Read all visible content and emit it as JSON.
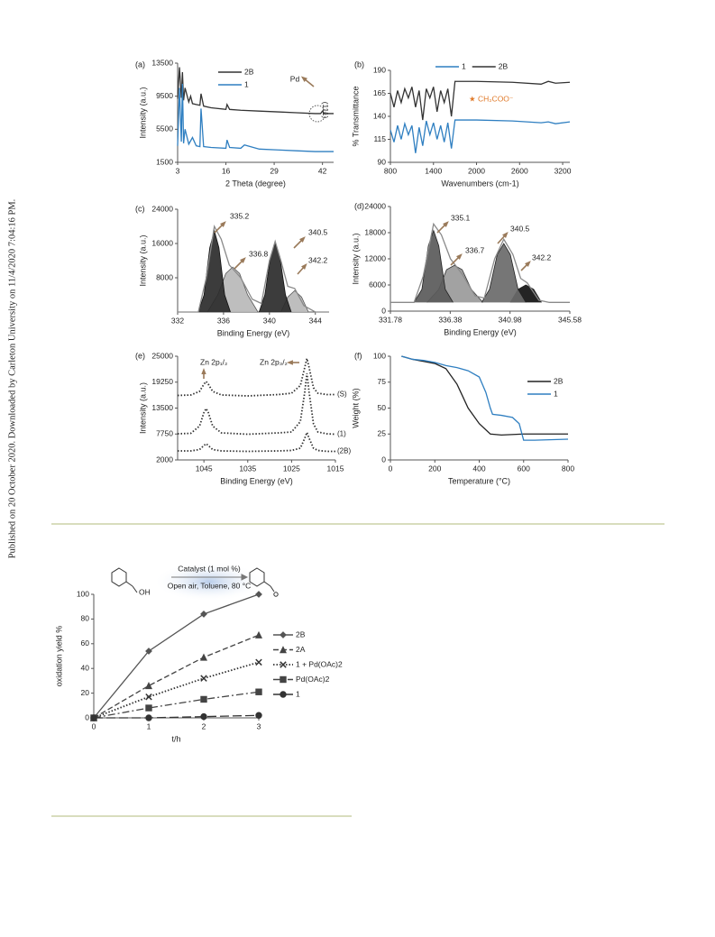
{
  "side_note": "Published on 20 October 2020. Downloaded by Carleton University on 11/4/2020 7:04:16 PM.",
  "chart_data": [
    {
      "type": "line",
      "panel_label": "(a)",
      "xlabel": "2 Theta (degree)",
      "ylabel": "Intensity (a.u.)",
      "xlim": [
        3,
        45
      ],
      "ylim": [
        1500,
        13500
      ],
      "xticks": [
        3,
        16,
        29,
        42
      ],
      "yticks": [
        1500,
        5500,
        9500,
        13500
      ],
      "legend": "upper left",
      "annotations": [
        "Pd",
        "(111)"
      ],
      "series": [
        {
          "name": "2B",
          "color": "#333333",
          "x": [
            3,
            3.5,
            4,
            4.3,
            4.6,
            5,
            6,
            6.5,
            7,
            8,
            9,
            9.3,
            10,
            12,
            16,
            16.3,
            17,
            20,
            25,
            30,
            35,
            40,
            41.5,
            42,
            42.5,
            45
          ],
          "values": [
            9200,
            13000,
            9300,
            12400,
            9000,
            10500,
            8800,
            9500,
            8600,
            8500,
            8400,
            9800,
            8300,
            8100,
            7900,
            8500,
            7900,
            7800,
            7700,
            7600,
            7500,
            7400,
            7400,
            7700,
            7400,
            7400
          ]
        },
        {
          "name": "1",
          "color": "#2f7fc1",
          "x": [
            3,
            3.5,
            4,
            4.3,
            4.6,
            5,
            6,
            7,
            8,
            9,
            9.3,
            10,
            12,
            16,
            16.3,
            17,
            20,
            21,
            25,
            30,
            35,
            40,
            45
          ],
          "values": [
            3500,
            10500,
            4000,
            11000,
            3800,
            5500,
            3700,
            4500,
            3500,
            3400,
            8000,
            3400,
            3300,
            3200,
            4200,
            3300,
            3200,
            3600,
            3100,
            3000,
            2900,
            2800,
            2800
          ]
        }
      ]
    },
    {
      "type": "line",
      "panel_label": "(b)",
      "xlabel": "Wavenumbers (cm-1)",
      "ylabel": "% Transmittance",
      "xlim": [
        800,
        3300
      ],
      "ylim": [
        90,
        190
      ],
      "xticks": [
        800,
        1400,
        2000,
        2600,
        3200
      ],
      "yticks": [
        90,
        115,
        140,
        165,
        190
      ],
      "legend": "top",
      "annotations": [
        "★ CH₂COO⁻"
      ],
      "x": [
        800,
        850,
        900,
        950,
        1000,
        1050,
        1100,
        1150,
        1200,
        1250,
        1300,
        1350,
        1400,
        1450,
        1500,
        1550,
        1600,
        1650,
        1700,
        1750,
        2000,
        2500,
        2900,
        3000,
        3100,
        3300
      ],
      "series": [
        {
          "name": "1",
          "color": "#2f7fc1",
          "values": [
            125,
            112,
            130,
            115,
            132,
            120,
            130,
            100,
            128,
            108,
            135,
            120,
            133,
            115,
            130,
            112,
            133,
            105,
            136,
            136,
            136,
            135,
            133,
            134,
            132,
            134
          ]
        },
        {
          "name": "2B",
          "color": "#333333",
          "values": [
            165,
            150,
            168,
            155,
            170,
            160,
            172,
            150,
            168,
            136,
            170,
            160,
            172,
            145,
            168,
            155,
            170,
            140,
            178,
            178,
            178,
            177,
            175,
            178,
            176,
            177
          ]
        }
      ]
    },
    {
      "type": "line",
      "panel_label": "(c)",
      "xlabel": "Binding Energy (eV)",
      "ylabel": "Intensity (a.u.)",
      "xlim": [
        332,
        345.2
      ],
      "ylim": [
        0,
        24000
      ],
      "xticks": [
        332,
        336,
        340,
        344
      ],
      "yticks": [
        8000,
        16000,
        24000
      ],
      "annotations": [
        "335.2",
        "336.8",
        "340.5",
        "342.2"
      ],
      "series": [
        {
          "color": "#555555",
          "fill": "#b8b8b8",
          "x": [
            334.6,
            335.5,
            336.2,
            336.8,
            337.4,
            338.1,
            339.0
          ],
          "values": [
            0,
            4000,
            9000,
            10500,
            9000,
            4000,
            0
          ]
        },
        {
          "color": "#111111",
          "fill": "#2b2b2b",
          "x": [
            333.8,
            334.3,
            334.8,
            335.2,
            335.6,
            336.1,
            336.6
          ],
          "values": [
            0,
            4000,
            15000,
            19000,
            15000,
            4000,
            0
          ]
        },
        {
          "color": "#555555",
          "fill": "#b8b8b8",
          "x": [
            341.0,
            341.6,
            342.2,
            342.8,
            343.4
          ],
          "values": [
            0,
            3500,
            5000,
            3500,
            0
          ]
        },
        {
          "color": "#111111",
          "fill": "#2b2b2b",
          "x": [
            339.1,
            339.6,
            340.1,
            340.5,
            340.9,
            341.4,
            341.9
          ],
          "values": [
            0,
            4000,
            13000,
            16000,
            13000,
            4000,
            0
          ]
        },
        {
          "color": "#8a8a8a",
          "x": [
            332,
            333.8,
            334.5,
            335.2,
            335.8,
            336.5,
            337.5,
            338.5,
            339.3,
            340,
            340.5,
            341,
            341.6,
            342.2,
            343,
            344,
            345.2
          ],
          "values": [
            0,
            0,
            8000,
            20000,
            17000,
            11000,
            8000,
            3000,
            2000,
            12000,
            16500,
            12000,
            6000,
            5500,
            1500,
            0,
            0
          ]
        }
      ]
    },
    {
      "type": "line",
      "panel_label": "(d)",
      "xlabel": "Binding Energy (eV)",
      "ylabel": "Intensity (a.u.)",
      "xlim": [
        331.78,
        345.58
      ],
      "ylim": [
        0,
        24000
      ],
      "xticks": [
        331.78,
        336.38,
        340.98,
        345.58
      ],
      "yticks": [
        0,
        6000,
        12000,
        18000,
        24000
      ],
      "annotations": [
        "335.1",
        "336.7",
        "340.5",
        "342.2"
      ],
      "series": [
        {
          "color": "#333333",
          "fill": "#9a9a9a",
          "x": [
            334.6,
            335.5,
            336.1,
            336.7,
            337.3,
            338.0,
            338.9
          ],
          "values": [
            2000,
            5000,
            9500,
            10500,
            9500,
            5000,
            2000
          ]
        },
        {
          "color": "#222222",
          "fill": "#5a5a5a",
          "x": [
            333.6,
            334.2,
            334.7,
            335.1,
            335.5,
            336.0,
            336.6
          ],
          "values": [
            2000,
            5000,
            15000,
            18500,
            15000,
            5000,
            2000
          ]
        },
        {
          "color": "#222222",
          "fill": "#111111",
          "x": [
            341.0,
            341.6,
            342.2,
            342.8,
            343.4
          ],
          "values": [
            2000,
            5000,
            6000,
            5000,
            2000
          ]
        },
        {
          "color": "#222222",
          "fill": "#6a6a6a",
          "x": [
            338.8,
            339.4,
            340.0,
            340.5,
            341.0,
            341.6,
            342.2
          ],
          "values": [
            2000,
            5000,
            13000,
            15500,
            13000,
            5000,
            2000
          ]
        },
        {
          "color": "#8a8a8a",
          "x": [
            331.78,
            333.6,
            334.3,
            335.1,
            335.7,
            336.4,
            337.3,
            338.3,
            339,
            339.8,
            340.5,
            341.2,
            341.8,
            342.3,
            343.2,
            344,
            345.58
          ],
          "values": [
            2000,
            2000,
            8000,
            20000,
            17500,
            12000,
            8500,
            3500,
            3000,
            12000,
            16500,
            13000,
            7500,
            6500,
            2500,
            2000,
            2000
          ]
        }
      ]
    },
    {
      "type": "line",
      "panel_label": "(e)",
      "xlabel": "Binding Energy (eV)",
      "ylabel": "Intensity (a.u.)",
      "xlim": [
        1051,
        1015
      ],
      "ylim": [
        2000,
        25000
      ],
      "xticks": [
        1045,
        1035,
        1025,
        1015
      ],
      "yticks": [
        2000,
        7750,
        13500,
        19250,
        25000
      ],
      "legend": "line end",
      "annotations": [
        "Zn 2p₁/₂",
        "Zn 2p₃/₂"
      ],
      "x": [
        1051,
        1048,
        1046,
        1045,
        1044.5,
        1044,
        1043,
        1041,
        1035,
        1028,
        1025,
        1023,
        1022,
        1021.5,
        1021,
        1020,
        1019,
        1017,
        1015
      ],
      "series": [
        {
          "name": "(S)",
          "color": "#333333",
          "dash": "dotted",
          "values": [
            16300,
            16400,
            17200,
            18800,
            19400,
            18800,
            17200,
            16400,
            16200,
            16500,
            16800,
            18500,
            22500,
            24500,
            22500,
            18000,
            16800,
            16500,
            16500
          ]
        },
        {
          "name": "(1)",
          "color": "#333333",
          "dash": "dotted",
          "values": [
            7800,
            7900,
            9500,
            12500,
            13400,
            12500,
            9500,
            8000,
            7700,
            8000,
            8200,
            10500,
            17000,
            21200,
            17000,
            10000,
            8200,
            7800,
            7700
          ]
        },
        {
          "name": "(2B)",
          "color": "#333333",
          "dash": "dotted",
          "values": [
            4000,
            4000,
            4300,
            5200,
            5600,
            5200,
            4300,
            4000,
            3900,
            4000,
            4100,
            4600,
            6800,
            8100,
            6800,
            4600,
            4100,
            3900,
            3900
          ]
        }
      ]
    },
    {
      "type": "line",
      "panel_label": "(f)",
      "xlabel": "Temperature (°C)",
      "ylabel": "Weight (%)",
      "xlim": [
        0,
        800
      ],
      "ylim": [
        0,
        100
      ],
      "xticks": [
        0,
        200,
        400,
        600,
        800
      ],
      "yticks": [
        0,
        25,
        50,
        75,
        100
      ],
      "legend": "right",
      "series": [
        {
          "name": "2B",
          "color": "#222222",
          "x": [
            50,
            100,
            150,
            200,
            250,
            300,
            350,
            400,
            450,
            500,
            600,
            700,
            800
          ],
          "values": [
            100,
            97,
            95,
            93,
            88,
            73,
            50,
            35,
            25,
            24,
            25,
            25,
            25
          ]
        },
        {
          "name": "1",
          "color": "#2f7fc1",
          "x": [
            50,
            100,
            150,
            200,
            250,
            300,
            350,
            400,
            430,
            450,
            460,
            500,
            550,
            580,
            600,
            650,
            800
          ],
          "values": [
            100,
            97,
            96,
            94,
            91,
            89,
            86,
            80,
            65,
            50,
            44,
            43,
            41,
            35,
            19,
            19,
            20
          ]
        }
      ]
    },
    {
      "type": "line",
      "xlabel": "t/h",
      "ylabel": "oxidation yield %",
      "xlim": [
        0,
        3
      ],
      "ylim": [
        0,
        100
      ],
      "xticks": [
        0,
        1,
        2,
        3
      ],
      "yticks": [
        0,
        20,
        40,
        60,
        80,
        100
      ],
      "legend": "outside right",
      "annotations": [
        "Catalyst (1 mol %)",
        "Open air, Toluene, 80 °C",
        "OH"
      ],
      "x": [
        0,
        1,
        2,
        3
      ],
      "series": [
        {
          "name": "2B",
          "color": "#555555",
          "marker": "diamond",
          "dash": "solid",
          "values": [
            0,
            54,
            84,
            100
          ]
        },
        {
          "name": "2A",
          "color": "#444444",
          "marker": "triangle",
          "dash": "dashed",
          "values": [
            0,
            26,
            49,
            67
          ]
        },
        {
          "name": "1 + Pd(OAc)2",
          "color": "#333333",
          "marker": "cross",
          "dash": "dotted",
          "values": [
            0,
            17,
            32,
            45
          ]
        },
        {
          "name": "Pd(OAc)2",
          "color": "#444444",
          "marker": "square",
          "dash": "dashdot",
          "values": [
            0,
            8,
            15,
            21
          ]
        },
        {
          "name": "1",
          "color": "#333333",
          "marker": "circle",
          "dash": "longdash",
          "values": [
            0,
            0,
            1,
            2
          ]
        }
      ]
    }
  ]
}
